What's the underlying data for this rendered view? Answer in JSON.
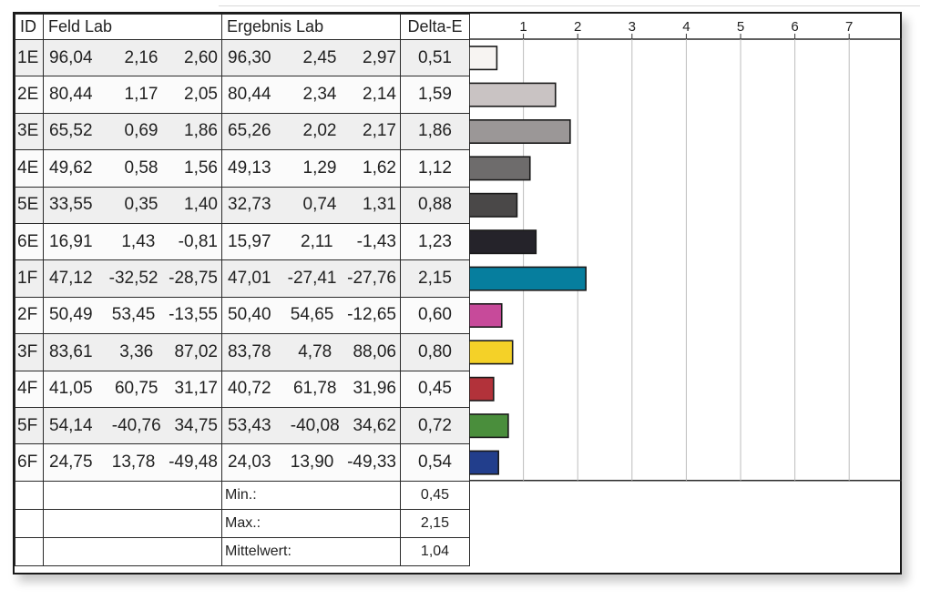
{
  "table": {
    "headers": {
      "id": "ID",
      "feld": "Feld Lab",
      "ergebnis": "Ergebnis Lab",
      "delta": "Delta-E"
    },
    "rows": [
      {
        "id": "1E",
        "feld": [
          "96,04",
          "2,16",
          "2,60"
        ],
        "erg": [
          "96,30",
          "2,45",
          "2,97"
        ],
        "de": "0,51"
      },
      {
        "id": "2E",
        "feld": [
          "80,44",
          "1,17",
          "2,05"
        ],
        "erg": [
          "80,44",
          "2,34",
          "2,14"
        ],
        "de": "1,59"
      },
      {
        "id": "3E",
        "feld": [
          "65,52",
          "0,69",
          "1,86"
        ],
        "erg": [
          "65,26",
          "2,02",
          "2,17"
        ],
        "de": "1,86"
      },
      {
        "id": "4E",
        "feld": [
          "49,62",
          "0,58",
          "1,56"
        ],
        "erg": [
          "49,13",
          "1,29",
          "1,62"
        ],
        "de": "1,12"
      },
      {
        "id": "5E",
        "feld": [
          "33,55",
          "0,35",
          "1,40"
        ],
        "erg": [
          "32,73",
          "0,74",
          "1,31"
        ],
        "de": "0,88"
      },
      {
        "id": "6E",
        "feld": [
          "16,91",
          "1,43",
          "-0,81"
        ],
        "erg": [
          "15,97",
          "2,11",
          "-1,43"
        ],
        "de": "1,23"
      },
      {
        "id": "1F",
        "feld": [
          "47,12",
          "-32,52",
          "-28,75"
        ],
        "erg": [
          "47,01",
          "-27,41",
          "-27,76"
        ],
        "de": "2,15"
      },
      {
        "id": "2F",
        "feld": [
          "50,49",
          "53,45",
          "-13,55"
        ],
        "erg": [
          "50,40",
          "54,65",
          "-12,65"
        ],
        "de": "0,60"
      },
      {
        "id": "3F",
        "feld": [
          "83,61",
          "3,36",
          "87,02"
        ],
        "erg": [
          "83,78",
          "4,78",
          "88,06"
        ],
        "de": "0,80"
      },
      {
        "id": "4F",
        "feld": [
          "41,05",
          "60,75",
          "31,17"
        ],
        "erg": [
          "40,72",
          "61,78",
          "31,96"
        ],
        "de": "0,45"
      },
      {
        "id": "5F",
        "feld": [
          "54,14",
          "-40,76",
          "34,75"
        ],
        "erg": [
          "53,43",
          "-40,08",
          "34,62"
        ],
        "de": "0,72"
      },
      {
        "id": "6F",
        "feld": [
          "24,75",
          "13,78",
          "-49,48"
        ],
        "erg": [
          "24,03",
          "13,90",
          "-49,33"
        ],
        "de": "0,54"
      }
    ],
    "summary": [
      {
        "label": "Min.:",
        "value": "0,45"
      },
      {
        "label": "Max.:",
        "value": "2,15"
      },
      {
        "label": "Mittelwert:",
        "value": "1,04"
      }
    ]
  },
  "chart_data": {
    "type": "bar",
    "orientation": "horizontal",
    "categories": [
      "1E",
      "2E",
      "3E",
      "4E",
      "5E",
      "6E",
      "1F",
      "2F",
      "3F",
      "4F",
      "5F",
      "6F"
    ],
    "values": [
      0.51,
      1.59,
      1.86,
      1.12,
      0.88,
      1.23,
      2.15,
      0.6,
      0.8,
      0.45,
      0.72,
      0.54
    ],
    "colors": [
      "#f7f4f2",
      "#c9c3c3",
      "#9b9797",
      "#6e6c6c",
      "#4a4848",
      "#25232a",
      "#067e9e",
      "#c74a9a",
      "#f4d128",
      "#b2323a",
      "#4a8e3c",
      "#223e8c"
    ],
    "x_ticks": [
      "1",
      "2",
      "3",
      "4",
      "5",
      "6",
      "7"
    ],
    "xlim": [
      0,
      8
    ],
    "grid": true
  }
}
